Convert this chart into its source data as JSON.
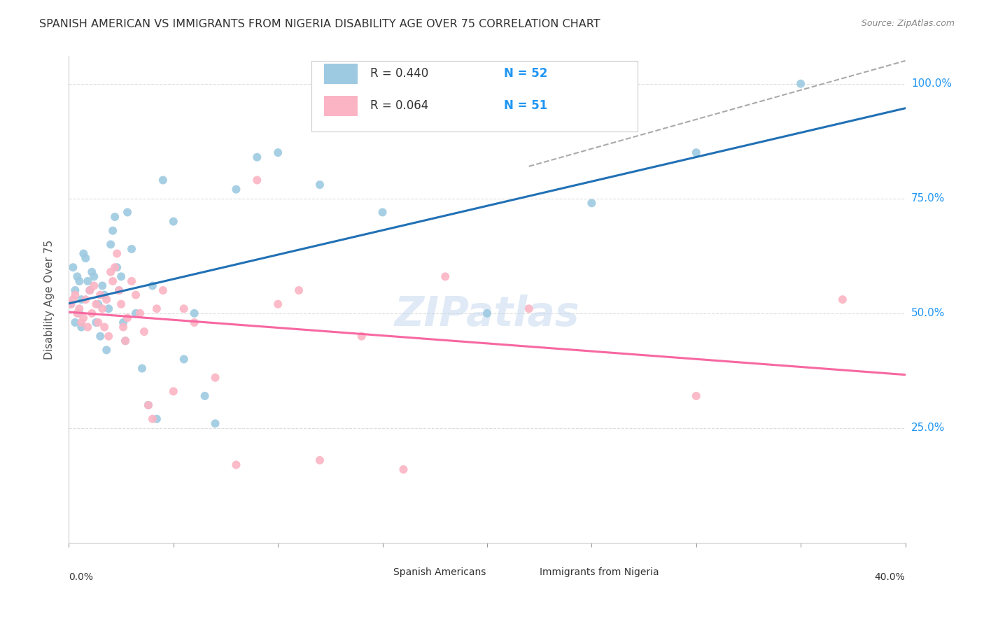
{
  "title": "SPANISH AMERICAN VS IMMIGRANTS FROM NIGERIA DISABILITY AGE OVER 75 CORRELATION CHART",
  "source": "Source: ZipAtlas.com",
  "ylabel": "Disability Age Over 75",
  "legend1_R": "0.440",
  "legend1_N": "52",
  "legend2_R": "0.064",
  "legend2_N": "51",
  "legend1_label": "Spanish Americans",
  "legend2_label": "Immigrants from Nigeria",
  "blue_scatter_color": "#9ecae1",
  "pink_scatter_color": "#fbb4c4",
  "blue_line_color": "#2171b5",
  "pink_line_color": "#f768a1",
  "gray_line_color": "#aaaaaa",
  "right_label_color": "#2196F3",
  "title_color": "#333333",
  "grid_color": "#dddddd",
  "bg_color": "#ffffff",
  "x_min": 0.0,
  "x_max": 0.4,
  "y_min": 0.0,
  "y_max": 1.06,
  "blue_R": 0.44,
  "pink_R": 0.064,
  "spanish_x": [
    0.001,
    0.002,
    0.003,
    0.003,
    0.004,
    0.005,
    0.005,
    0.006,
    0.006,
    0.007,
    0.008,
    0.009,
    0.01,
    0.011,
    0.012,
    0.013,
    0.014,
    0.015,
    0.016,
    0.017,
    0.018,
    0.019,
    0.02,
    0.021,
    0.022,
    0.023,
    0.024,
    0.025,
    0.026,
    0.027,
    0.028,
    0.03,
    0.032,
    0.035,
    0.038,
    0.04,
    0.042,
    0.045,
    0.05,
    0.055,
    0.06,
    0.065,
    0.07,
    0.08,
    0.09,
    0.1,
    0.12,
    0.15,
    0.2,
    0.25,
    0.3,
    0.35
  ],
  "spanish_y": [
    0.52,
    0.6,
    0.55,
    0.48,
    0.58,
    0.57,
    0.5,
    0.53,
    0.47,
    0.63,
    0.62,
    0.57,
    0.55,
    0.59,
    0.58,
    0.48,
    0.52,
    0.45,
    0.56,
    0.54,
    0.42,
    0.51,
    0.65,
    0.68,
    0.71,
    0.6,
    0.55,
    0.58,
    0.48,
    0.44,
    0.72,
    0.64,
    0.5,
    0.38,
    0.3,
    0.56,
    0.27,
    0.79,
    0.7,
    0.4,
    0.5,
    0.32,
    0.26,
    0.77,
    0.84,
    0.85,
    0.78,
    0.72,
    0.5,
    0.74,
    0.85,
    1.0
  ],
  "nigeria_x": [
    0.001,
    0.002,
    0.003,
    0.004,
    0.005,
    0.006,
    0.007,
    0.008,
    0.009,
    0.01,
    0.011,
    0.012,
    0.013,
    0.014,
    0.015,
    0.016,
    0.017,
    0.018,
    0.019,
    0.02,
    0.021,
    0.022,
    0.023,
    0.024,
    0.025,
    0.026,
    0.027,
    0.028,
    0.03,
    0.032,
    0.034,
    0.036,
    0.038,
    0.04,
    0.042,
    0.045,
    0.05,
    0.055,
    0.06,
    0.07,
    0.08,
    0.09,
    0.1,
    0.11,
    0.12,
    0.14,
    0.16,
    0.18,
    0.22,
    0.3,
    0.37
  ],
  "nigeria_y": [
    0.52,
    0.53,
    0.54,
    0.5,
    0.51,
    0.48,
    0.49,
    0.53,
    0.47,
    0.55,
    0.5,
    0.56,
    0.52,
    0.48,
    0.54,
    0.51,
    0.47,
    0.53,
    0.45,
    0.59,
    0.57,
    0.6,
    0.63,
    0.55,
    0.52,
    0.47,
    0.44,
    0.49,
    0.57,
    0.54,
    0.5,
    0.46,
    0.3,
    0.27,
    0.51,
    0.55,
    0.33,
    0.51,
    0.48,
    0.36,
    0.17,
    0.79,
    0.52,
    0.55,
    0.18,
    0.45,
    0.16,
    0.58,
    0.51,
    0.32,
    0.53
  ],
  "watermark": "ZIPatlas"
}
